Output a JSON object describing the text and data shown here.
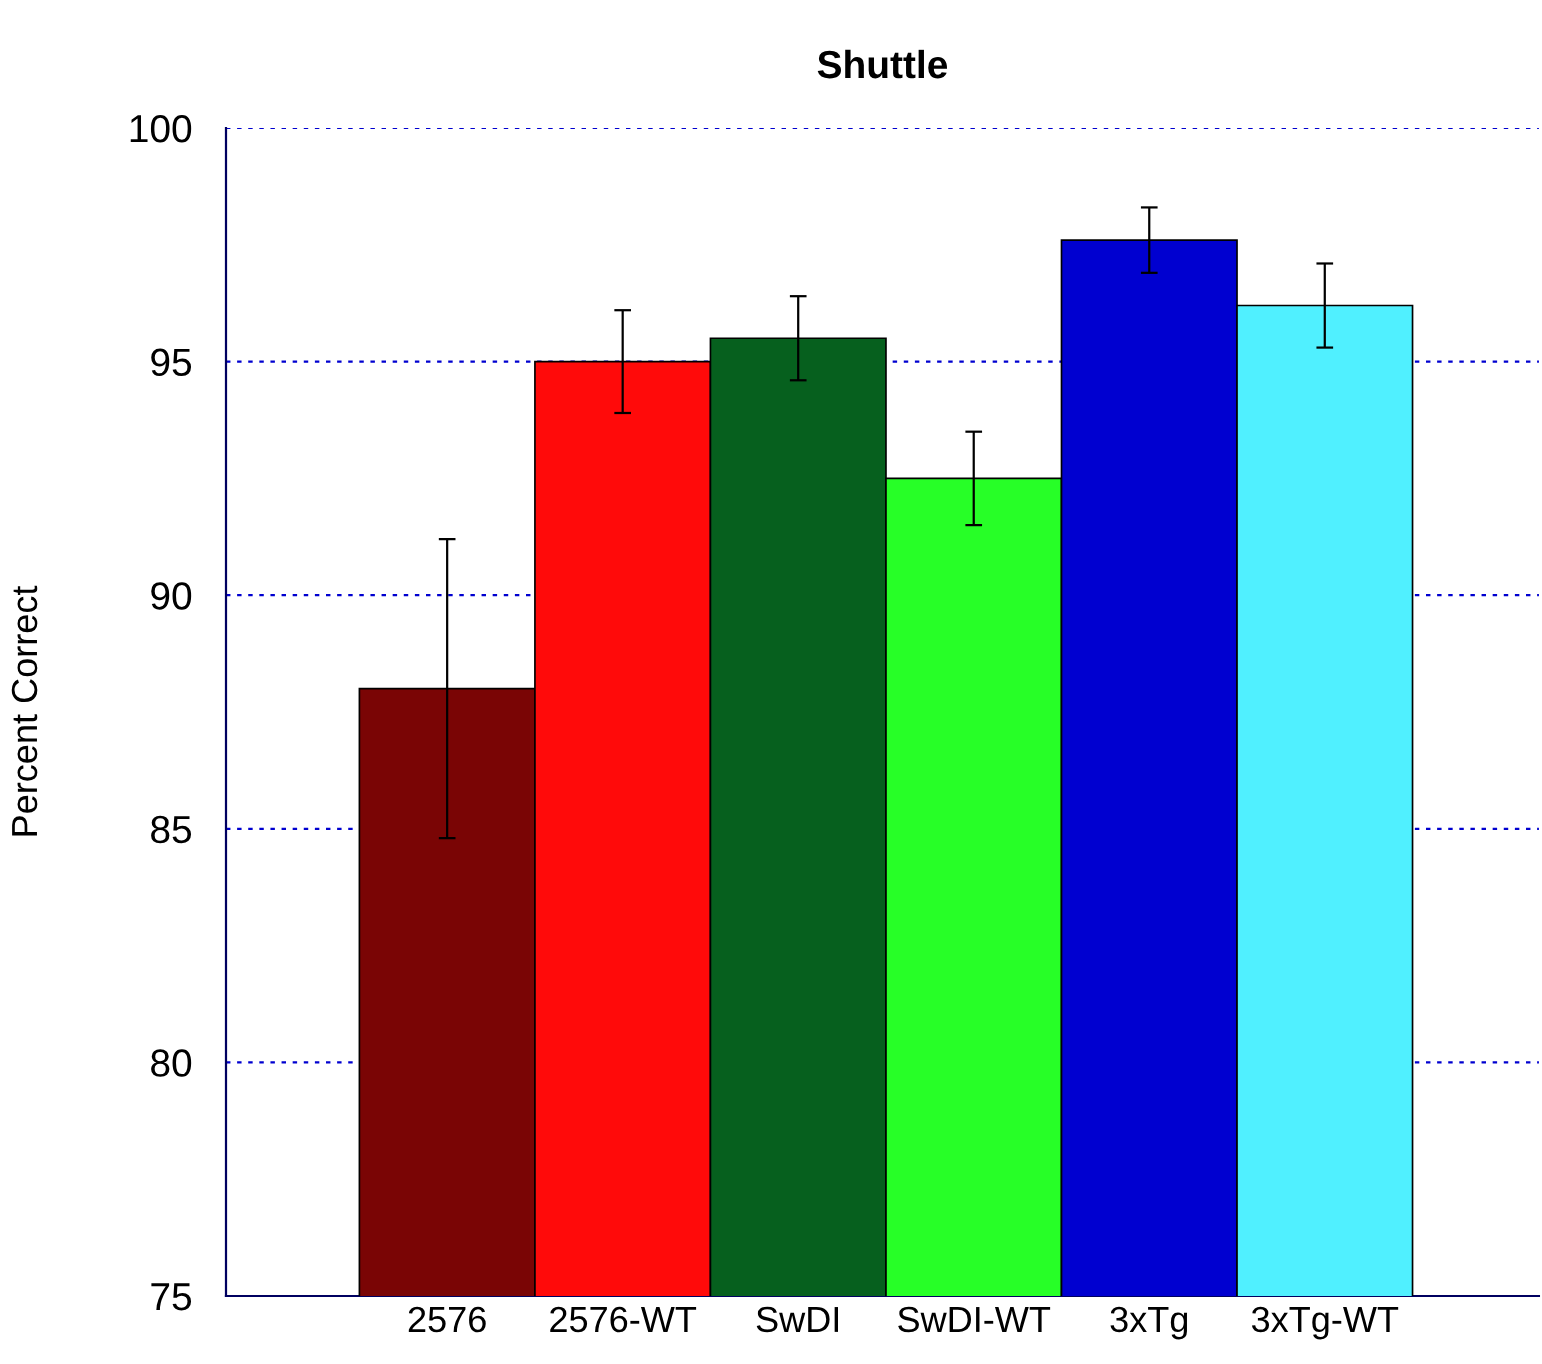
{
  "chart_data": {
    "type": "bar",
    "title": "Shuttle",
    "ylabel": "Percent Correct",
    "categories": [
      "2576",
      "2576-WT",
      "SwDI",
      "SwDI-WT",
      "3xTg",
      "3xTg-WT"
    ],
    "values": [
      88.0,
      95.0,
      95.5,
      92.5,
      97.6,
      96.2
    ],
    "errors": [
      3.2,
      1.1,
      0.9,
      1.0,
      0.7,
      0.9
    ],
    "colors": [
      "#7a0505",
      "#ff0a0a",
      "#06601e",
      "#27ff27",
      "#0000d0",
      "#50f0ff"
    ],
    "ylim": [
      75,
      100
    ],
    "yticks": [
      75,
      80,
      85,
      90,
      95,
      100
    ],
    "grid": "y"
  }
}
